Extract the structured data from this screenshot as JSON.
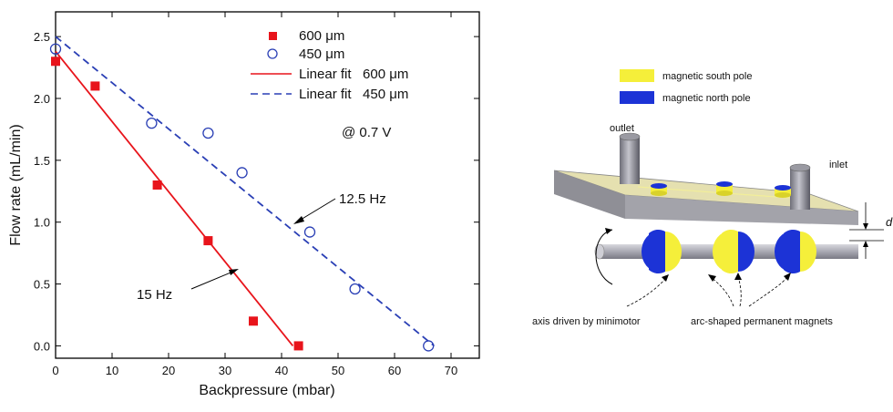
{
  "chart_data": {
    "type": "scatter",
    "xlabel": "Backpressure (mbar)",
    "ylabel": "Flow rate (mL/min)",
    "xlim": [
      0,
      75
    ],
    "ylim": [
      -0.1,
      2.7
    ],
    "xticks": [
      "0",
      "10",
      "20",
      "30",
      "40",
      "50",
      "60",
      "70"
    ],
    "yticks": [
      "0.0",
      "0.5",
      "1.0",
      "1.5",
      "2.0",
      "2.5"
    ],
    "grid": false,
    "legend_position": "top-center",
    "series": [
      {
        "name": "600 μm",
        "marker": "filled-square",
        "color": "#e8141b",
        "x": [
          0,
          7,
          18,
          27,
          35,
          43
        ],
        "y": [
          2.3,
          2.1,
          1.3,
          0.85,
          0.2,
          0.0
        ]
      },
      {
        "name": "450 μm",
        "marker": "open-circle",
        "color": "#2a3fb5",
        "x": [
          0,
          17,
          27,
          33,
          45,
          53,
          66
        ],
        "y": [
          2.4,
          1.8,
          1.72,
          1.4,
          0.92,
          0.46,
          0.0
        ]
      }
    ],
    "fits": [
      {
        "name": "Linear fit   600 μm",
        "style": "solid",
        "color": "#e8141b",
        "x": [
          0,
          42
        ],
        "y": [
          2.38,
          0.0
        ]
      },
      {
        "name": "Linear fit   450 μm",
        "style": "dashed",
        "color": "#2a3fb5",
        "x": [
          0,
          67
        ],
        "y": [
          2.5,
          0.0
        ]
      }
    ],
    "annotations": {
      "voltage": "@ 0.7 V",
      "freq_450": "12.5 Hz",
      "freq_600": "15 Hz"
    }
  },
  "diagram": {
    "legend_south": "magnetic south pole",
    "legend_north": "magnetic north pole",
    "outlet": "outlet",
    "inlet": "inlet",
    "gap_label": "d",
    "axis_caption": "axis driven by minimotor",
    "magnets_caption": "arc-shaped permanent magnets",
    "colors": {
      "south": "#f5ef3a",
      "north": "#1c33d6",
      "plate": "#b0b0b0",
      "plate_top": "#e5e0b0"
    }
  }
}
